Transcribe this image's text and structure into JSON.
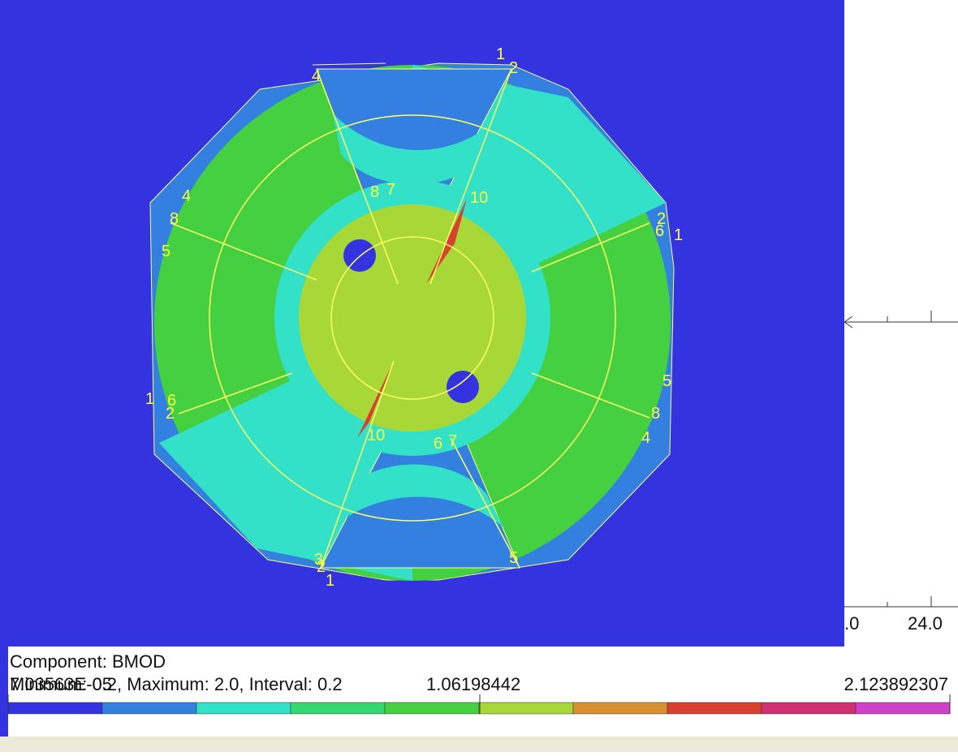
{
  "legend": {
    "component": "Component: BMOD",
    "minimum_value": "7.03563E-05",
    "range_text": "Minimum: 0.2,  Maximum: 2.0,  Interval: 0.2",
    "mid_value": "1.06198442",
    "max_value": "2.123892307",
    "colors": [
      "#3333e0",
      "#3380e0",
      "#33e0c8",
      "#33d870",
      "#44d040",
      "#a8d838",
      "#d89030",
      "#d84030",
      "#d03070",
      "#d040c8"
    ]
  },
  "axis": {
    "labels": [
      ".0",
      "24.0"
    ]
  },
  "contour_labels": [
    1,
    2,
    4,
    4,
    8,
    5,
    1,
    6,
    2,
    7,
    8,
    10,
    2,
    1,
    6,
    5,
    8,
    4,
    10,
    6,
    7,
    3,
    2,
    1,
    5
  ]
}
